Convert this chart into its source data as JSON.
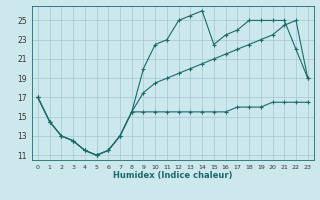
{
  "xlabel": "Humidex (Indice chaleur)",
  "xlim": [
    -0.5,
    23.5
  ],
  "ylim": [
    10.5,
    26.5
  ],
  "xticks": [
    0,
    1,
    2,
    3,
    4,
    5,
    6,
    7,
    8,
    9,
    10,
    11,
    12,
    13,
    14,
    15,
    16,
    17,
    18,
    19,
    20,
    21,
    22,
    23
  ],
  "yticks": [
    11,
    13,
    15,
    17,
    19,
    21,
    23,
    25
  ],
  "bg_color": "#cce8ec",
  "grid_color": "#aacdd4",
  "line_color": "#1a6b6b",
  "line1_y": [
    17.0,
    14.5,
    13.0,
    12.5,
    11.5,
    11.0,
    11.5,
    13.0,
    15.5,
    17.5,
    18.5,
    19.0,
    19.5,
    20.0,
    20.5,
    21.0,
    21.5,
    22.0,
    22.5,
    23.0,
    23.5,
    24.5,
    25.0,
    19.0
  ],
  "line2_y": [
    17.0,
    14.5,
    13.0,
    12.5,
    11.5,
    11.0,
    11.5,
    13.0,
    15.5,
    20.0,
    22.5,
    23.0,
    25.0,
    25.5,
    26.0,
    22.5,
    23.5,
    24.0,
    25.0,
    25.0,
    25.0,
    25.0,
    22.0,
    19.0
  ],
  "line3_y": [
    17.0,
    14.5,
    13.0,
    12.5,
    11.5,
    11.0,
    11.5,
    13.0,
    15.5,
    15.5,
    15.5,
    15.5,
    15.5,
    15.5,
    15.5,
    15.5,
    15.5,
    16.0,
    16.0,
    16.0,
    16.5,
    16.5,
    16.5,
    16.5
  ]
}
